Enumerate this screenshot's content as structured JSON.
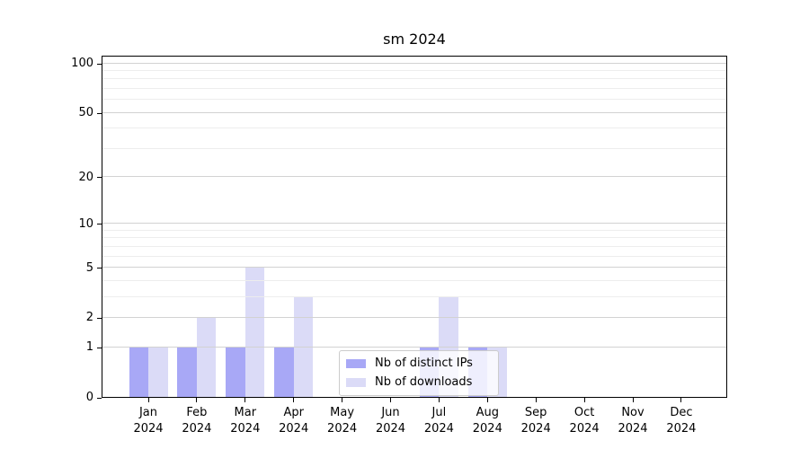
{
  "chart_data": {
    "type": "bar",
    "title": "sm 2024",
    "year": "2024",
    "categories": [
      "Jan",
      "Feb",
      "Mar",
      "Apr",
      "May",
      "Jun",
      "Jul",
      "Aug",
      "Sep",
      "Oct",
      "Nov",
      "Dec"
    ],
    "series": [
      {
        "name": "Nb of distinct IPs",
        "color": "#a8a8f6",
        "values": [
          1,
          1,
          1,
          1,
          0,
          0,
          1,
          1,
          0,
          0,
          0,
          0
        ]
      },
      {
        "name": "Nb of downloads",
        "color": "#dbdbf7",
        "values": [
          1,
          2,
          5,
          3,
          0,
          0,
          3,
          1,
          0,
          0,
          0,
          0
        ]
      }
    ],
    "yscale": "log1p",
    "ylim": [
      0,
      112
    ],
    "yticks": [
      0,
      1,
      2,
      5,
      10,
      20,
      50,
      100
    ],
    "yminor_gridlines": [
      3,
      4,
      6,
      7,
      8,
      9,
      30,
      40,
      60,
      70,
      80,
      90
    ],
    "grid": "horizontal",
    "legend_position": "inside-bottom-center"
  }
}
